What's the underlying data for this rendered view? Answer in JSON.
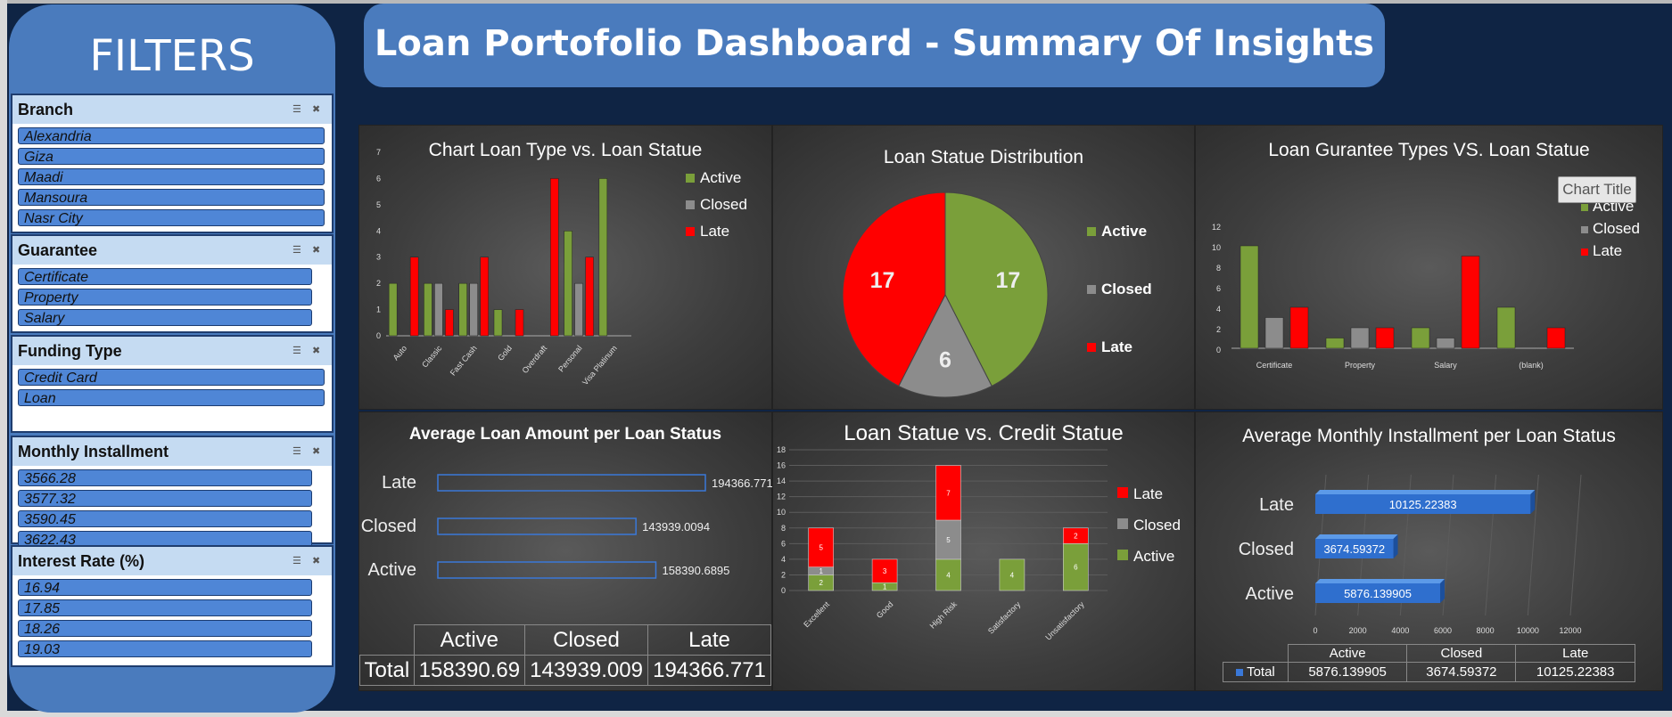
{
  "filters": {
    "title": "FILTERS",
    "slicers": [
      {
        "title": "Branch",
        "items": [
          "Alexandria",
          "Giza",
          "Maadi",
          "Mansoura",
          "Nasr City"
        ]
      },
      {
        "title": "Guarantee",
        "items": [
          "Certificate",
          "Property",
          "Salary"
        ]
      },
      {
        "title": "Funding Type",
        "items": [
          "Credit Card",
          "Loan"
        ]
      },
      {
        "title": "Monthly Installment",
        "items": [
          "3566.28",
          "3577.32",
          "3590.45",
          "3622.43"
        ]
      },
      {
        "title": "Interest Rate (%)",
        "items": [
          "16.94",
          "17.85",
          "18.26",
          "19.03"
        ]
      }
    ]
  },
  "header": {
    "title": "Loan Portofolio Dashboard - Summary Of Insights"
  },
  "colors": {
    "active": "#7a9f3a",
    "closed": "#8c8c8c",
    "late": "#ff0000",
    "accent": "#4a7bbd",
    "background": "#0f2444"
  },
  "chart_data": [
    {
      "type": "bar",
      "title": "Chart Loan Type vs. Loan Statue",
      "categories": [
        "Auto",
        "Classic",
        "Fast Cash",
        "Gold",
        "Overdraft",
        "Personal",
        "Visa Platinum"
      ],
      "series": [
        {
          "name": "Active",
          "values": [
            2,
            2,
            2,
            1,
            0,
            4,
            6
          ]
        },
        {
          "name": "Closed",
          "values": [
            0,
            2,
            2,
            0,
            0,
            2,
            0
          ]
        },
        {
          "name": "Late",
          "values": [
            3,
            1,
            3,
            1,
            6,
            3,
            0
          ]
        }
      ],
      "ylim": [
        0,
        7
      ],
      "yticks": [
        "0",
        "1",
        "2",
        "3",
        "4",
        "5",
        "6",
        "7"
      ],
      "legend": "right"
    },
    {
      "type": "pie",
      "title": "Loan Statue Distribution",
      "labels": [
        "Active",
        "Closed",
        "Late"
      ],
      "values": [
        17,
        6,
        17
      ],
      "legend": "right"
    },
    {
      "type": "bar",
      "title": "Loan Gurantee Types VS. Loan Statue",
      "categories": [
        "Certificate",
        "Property",
        "Salary",
        "(blank)"
      ],
      "series": [
        {
          "name": "Active",
          "values": [
            10,
            1,
            2,
            4
          ]
        },
        {
          "name": "Closed",
          "values": [
            3,
            2,
            1,
            0
          ]
        },
        {
          "name": "Late",
          "values": [
            4,
            2,
            9,
            2
          ]
        }
      ],
      "ylim": [
        0,
        12
      ],
      "yticks": [
        "0",
        "2",
        "4",
        "6",
        "8",
        "10",
        "12"
      ],
      "legend": "right",
      "overlay_button": "Chart Title"
    },
    {
      "type": "bar",
      "orientation": "horizontal",
      "title": "Average Loan Amount per Loan Status",
      "categories": [
        "Late",
        "Closed",
        "Active"
      ],
      "values": [
        194366.7711,
        143939.0094,
        158390.6895
      ],
      "value_labels": [
        "194366.7711",
        "143939.0094",
        "158390.6895"
      ],
      "table": {
        "row_label": "Total",
        "columns": [
          "Active",
          "Closed",
          "Late"
        ],
        "values": [
          "158390.69",
          "143939.009",
          "194366.771"
        ]
      }
    },
    {
      "type": "bar",
      "stacked": true,
      "title": "Loan Statue vs. Credit Statue",
      "categories": [
        "Excellent",
        "Good",
        "High Risk",
        "Satisfactory",
        "Unsatisfactory"
      ],
      "series": [
        {
          "name": "Active",
          "values": [
            2,
            1,
            4,
            4,
            6
          ],
          "labels": [
            "2",
            "1",
            "4",
            "4",
            "6"
          ]
        },
        {
          "name": "Closed",
          "values": [
            1,
            0,
            5,
            0,
            0
          ],
          "labels": [
            "1",
            "",
            "5",
            "",
            ""
          ]
        },
        {
          "name": "Late",
          "values": [
            5,
            3,
            7,
            0,
            2
          ],
          "labels": [
            "5",
            "3",
            "7",
            "",
            "2"
          ]
        }
      ],
      "ylim": [
        0,
        18
      ],
      "yticks": [
        "0",
        "2",
        "4",
        "6",
        "8",
        "10",
        "12",
        "14",
        "16",
        "18"
      ],
      "legend": "right",
      "legend_order": [
        "Late",
        "Closed",
        "Active"
      ]
    },
    {
      "type": "bar",
      "orientation": "horizontal",
      "title": "Average Monthly Installment per Loan Status",
      "categories": [
        "Late",
        "Closed",
        "Active"
      ],
      "values": [
        10125.22383,
        3674.59372,
        5876.139905
      ],
      "value_labels": [
        "10125.22383",
        "3674.59372",
        "5876.139905"
      ],
      "xlim": [
        0,
        12000
      ],
      "xticks": [
        "0",
        "2000",
        "4000",
        "6000",
        "8000",
        "10000",
        "12000"
      ],
      "table": {
        "row_label": "Total",
        "columns": [
          "Active",
          "Closed",
          "Late"
        ],
        "values": [
          "5876.139905",
          "3674.59372",
          "10125.22383"
        ]
      }
    }
  ]
}
